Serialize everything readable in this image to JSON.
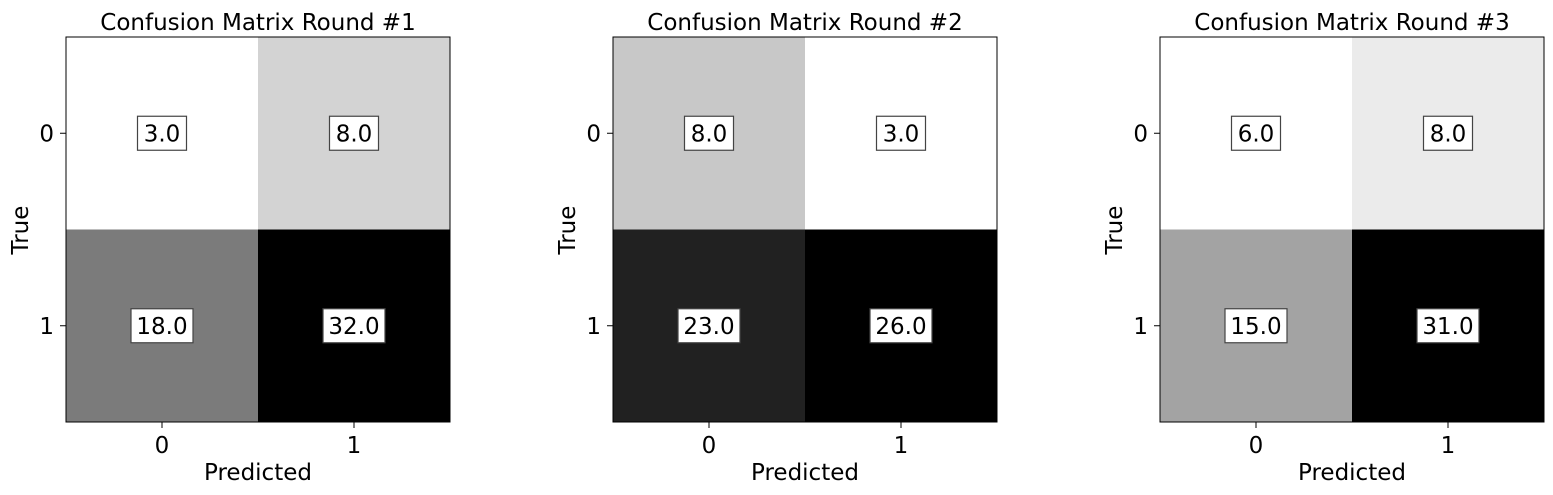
{
  "chart_data": [
    {
      "type": "heatmap",
      "title": "Confusion Matrix Round #1",
      "xlabel": "Predicted",
      "ylabel": "True",
      "x_ticks": [
        "0",
        "1"
      ],
      "y_ticks": [
        "0",
        "1"
      ],
      "values": [
        [
          3.0,
          8.0
        ],
        [
          18.0,
          32.0
        ]
      ],
      "value_labels": [
        [
          "3.0",
          "8.0"
        ],
        [
          "18.0",
          "32.0"
        ]
      ],
      "colormap": "Greys"
    },
    {
      "type": "heatmap",
      "title": "Confusion Matrix Round #2",
      "xlabel": "Predicted",
      "ylabel": "True",
      "x_ticks": [
        "0",
        "1"
      ],
      "y_ticks": [
        "0",
        "1"
      ],
      "values": [
        [
          8.0,
          3.0
        ],
        [
          23.0,
          26.0
        ]
      ],
      "value_labels": [
        [
          "8.0",
          "3.0"
        ],
        [
          "23.0",
          "26.0"
        ]
      ],
      "colormap": "Greys"
    },
    {
      "type": "heatmap",
      "title": "Confusion Matrix Round #3",
      "xlabel": "Predicted",
      "ylabel": "True",
      "x_ticks": [
        "0",
        "1"
      ],
      "y_ticks": [
        "0",
        "1"
      ],
      "values": [
        [
          6.0,
          8.0
        ],
        [
          15.0,
          31.0
        ]
      ],
      "value_labels": [
        [
          "6.0",
          "8.0"
        ],
        [
          "15.0",
          "31.0"
        ]
      ],
      "colormap": "Greys"
    }
  ]
}
